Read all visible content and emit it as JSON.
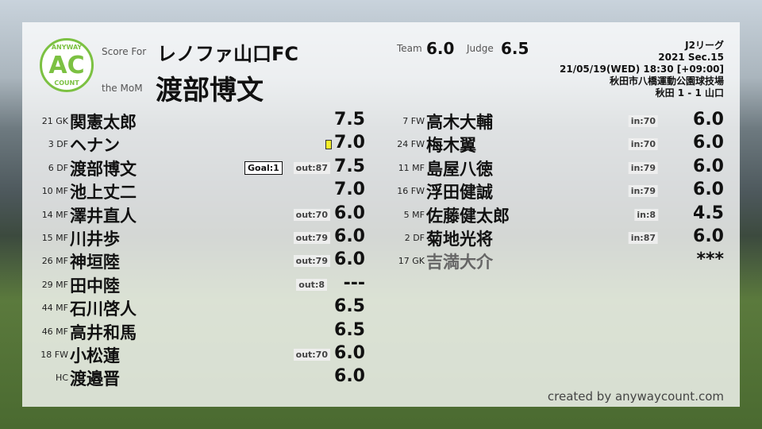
{
  "header": {
    "logo_top": "ANYWAY",
    "logo_mid": "AC",
    "logo_bottom": "COUNT",
    "score_for_label": "Score For",
    "team": "レノファ山口FC",
    "mom_label": "the MoM",
    "mom": "渡部博文",
    "team_label": "Team",
    "team_score": "6.0",
    "judge_label": "Judge",
    "judge_score": "6.5"
  },
  "match": {
    "league": "J2リーグ",
    "section": "2021 Sec.15",
    "datetime": "21/05/19(WED) 18:30 [+09:00]",
    "venue": "秋田市八橋運動公園球技場",
    "result": "秋田 1 - 1 山口"
  },
  "starters": [
    {
      "np": "21 GK",
      "name": "関憲太郎",
      "score": "7.5"
    },
    {
      "np": "3 DF",
      "name": "ヘナン",
      "score": "7.0",
      "yellow": true
    },
    {
      "np": "6 DF",
      "name": "渡部博文",
      "score": "7.5",
      "goal": "Goal:1",
      "sub": "out:87"
    },
    {
      "np": "10 MF",
      "name": "池上丈二",
      "score": "7.0"
    },
    {
      "np": "14 MF",
      "name": "澤井直人",
      "score": "6.0",
      "sub": "out:70"
    },
    {
      "np": "15 MF",
      "name": "川井歩",
      "score": "6.0",
      "sub": "out:79"
    },
    {
      "np": "26 MF",
      "name": "神垣陸",
      "score": "6.0",
      "sub": "out:79"
    },
    {
      "np": "29 MF",
      "name": "田中陸",
      "score": "---",
      "sub": "out:8"
    },
    {
      "np": "44 MF",
      "name": "石川啓人",
      "score": "6.5"
    },
    {
      "np": "46 MF",
      "name": "高井和馬",
      "score": "6.5"
    },
    {
      "np": "18 FW",
      "name": "小松蓮",
      "score": "6.0",
      "sub": "out:70"
    },
    {
      "np": "HC",
      "name": "渡邉晋",
      "score": "6.0"
    }
  ],
  "subs": [
    {
      "np": "7 FW",
      "name": "高木大輔",
      "score": "6.0",
      "sub": "in:70"
    },
    {
      "np": "24 FW",
      "name": "梅木翼",
      "score": "6.0",
      "sub": "in:70"
    },
    {
      "np": "11 MF",
      "name": "島屋八徳",
      "score": "6.0",
      "sub": "in:79"
    },
    {
      "np": "16 FW",
      "name": "浮田健誠",
      "score": "6.0",
      "sub": "in:79"
    },
    {
      "np": "5 MF",
      "name": "佐藤健太郎",
      "score": "4.5",
      "sub": "in:8"
    },
    {
      "np": "2 DF",
      "name": "菊地光将",
      "score": "6.0",
      "sub": "in:87"
    },
    {
      "np": "17 GK",
      "name": "吉満大介",
      "score": "***",
      "unused": true
    }
  ],
  "credit": "created by anywaycount.com",
  "colors": {
    "logo": "#7cc142",
    "yellow_card": "#f5ee2a"
  }
}
